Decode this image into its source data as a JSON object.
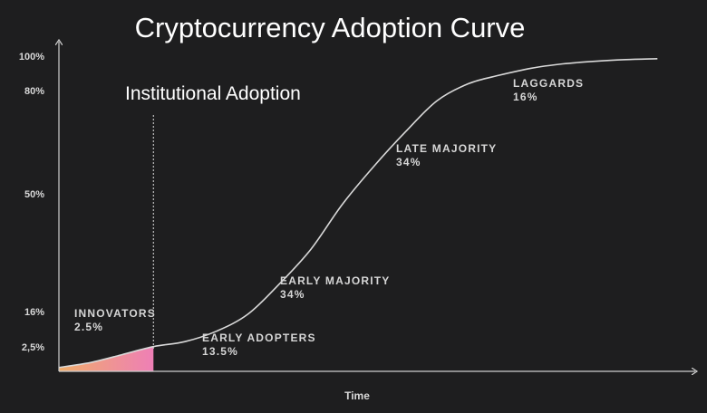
{
  "chart_data": {
    "type": "line",
    "title": "Cryptocurrency Adoption Curve",
    "xlabel": "Time",
    "ylabel": "",
    "y_ticks": [
      "100%",
      "80%",
      "50%",
      "16%",
      "2,5%"
    ],
    "y_tick_values": [
      100,
      80,
      50,
      16,
      2.5
    ],
    "ylim": [
      0,
      100
    ],
    "xlim": [
      0,
      100
    ],
    "grid": false,
    "annotation": {
      "label": "Institutional Adoption",
      "x": 15
    },
    "series": [
      {
        "name": "",
        "x": [
          0,
          5,
          10,
          15,
          20,
          25,
          30,
          35,
          40,
          45,
          50,
          55,
          60,
          65,
          70,
          75,
          80,
          85,
          90,
          95
        ],
        "values": [
          0.4,
          0.9,
          1.7,
          2.6,
          4.5,
          8.5,
          15,
          24,
          34,
          47,
          58,
          68,
          77,
          84,
          89,
          93,
          95.5,
          97,
          98,
          98.5
        ]
      }
    ],
    "segments": [
      {
        "name": "INNOVATORS",
        "share": "2.5%"
      },
      {
        "name": "EARLY ADOPTERS",
        "share": "13.5%"
      },
      {
        "name": "EARLY MAJORITY",
        "share": "34%"
      },
      {
        "name": "LATE MAJORITY",
        "share": "34%"
      },
      {
        "name": "LAGGARDS",
        "share": "16%"
      }
    ],
    "colors": {
      "background": "#1e1e1f",
      "curve": "#d9d9d9",
      "axis": "#cfcfcf",
      "fill_start": "#f0ad6a",
      "fill_end": "#ee7fb6"
    }
  }
}
